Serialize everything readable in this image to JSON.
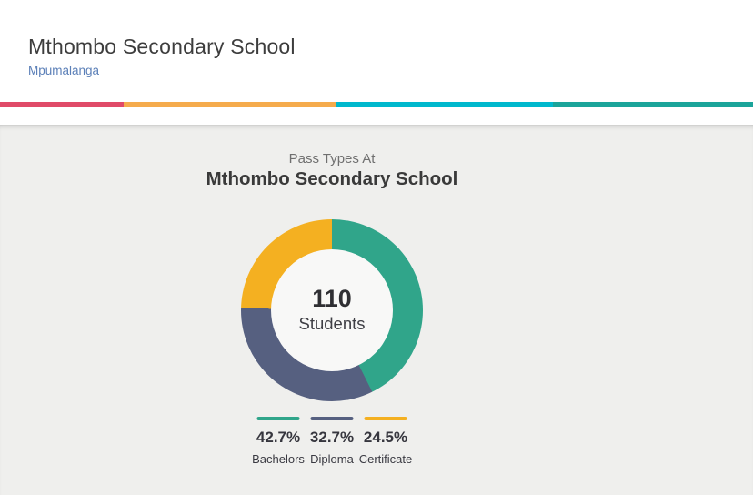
{
  "header": {
    "school_name": "Mthombo Secondary School",
    "region_link": "Mpumalanga"
  },
  "stripe": {
    "segments": [
      {
        "name": "pink",
        "color": "#e04a68",
        "width_pct": 16.43
      },
      {
        "name": "orange",
        "color": "#f5ab4c",
        "width_pct": 28.14
      },
      {
        "name": "cyan",
        "color": "#00b8cd",
        "width_pct": 28.86
      },
      {
        "name": "teal",
        "color": "#1ba49a",
        "width_pct": 26.57
      }
    ]
  },
  "chart_data": {
    "type": "pie",
    "donut": true,
    "title": "Pass Types At",
    "title_line2": "Mthombo Secondary School",
    "center_total": "110",
    "center_label": "Students",
    "legend_position": "bottom",
    "start_angle_deg": 0,
    "direction": "clockwise",
    "slices": [
      {
        "label": "Bachelors",
        "value": 42.7,
        "display": "42.7%",
        "color": "#30a58a"
      },
      {
        "label": "Diploma",
        "value": 32.7,
        "display": "32.7%",
        "color": "#566080"
      },
      {
        "label": "Certificate",
        "value": 24.5,
        "display": "24.5%",
        "color": "#f4b021"
      }
    ],
    "colors": {
      "hole_bg": "#f8f8f7",
      "panel_bg": "#efefed"
    }
  }
}
